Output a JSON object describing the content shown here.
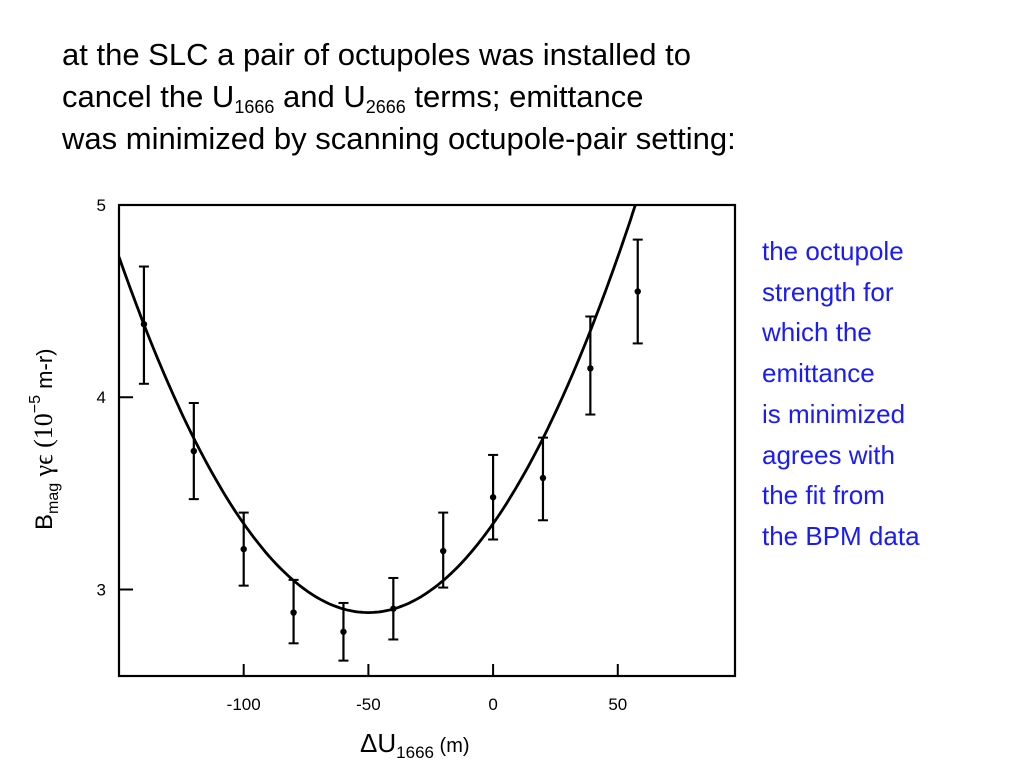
{
  "heading": {
    "line1": "at the SLC a pair of octupoles was installed to",
    "line2_a": "cancel the U",
    "line2_sub1": "1666",
    "line2_b": " and U",
    "line2_sub2": "2666",
    "line2_c": " terms; emittance",
    "line3": "was minimized by scanning octupole-pair setting:"
  },
  "side_note": {
    "lines": [
      "the octupole",
      "strength for",
      "which the",
      "emittance",
      "is minimized",
      "agrees with",
      "the fit from",
      "the BPM data"
    ]
  },
  "chart_data": {
    "type": "scatter",
    "xlabel_main": "ΔU",
    "xlabel_sub": "1666",
    "xlabel_unit": " (m)",
    "ylabel_b": "B",
    "ylabel_sub": "mag",
    "ylabel_sym": " γϵ (10",
    "ylabel_exp": "−5",
    "ylabel_unit": " m-r)",
    "xlim": [
      -150,
      97
    ],
    "ylim": [
      2.55,
      5.0
    ],
    "xticks": [
      -100,
      -50,
      0,
      50
    ],
    "xtick_labels": [
      "-100",
      "-50",
      "0",
      "50"
    ],
    "yticks": [
      3,
      4,
      5
    ],
    "ytick_labels": [
      "3",
      "4",
      "5"
    ],
    "points": [
      {
        "x": -140,
        "y": 4.38,
        "lo": 4.07,
        "hi": 4.68
      },
      {
        "x": -120,
        "y": 3.72,
        "lo": 3.47,
        "hi": 3.97
      },
      {
        "x": -100,
        "y": 3.21,
        "lo": 3.02,
        "hi": 3.4
      },
      {
        "x": -80,
        "y": 2.88,
        "lo": 2.72,
        "hi": 3.05
      },
      {
        "x": -60,
        "y": 2.78,
        "lo": 2.63,
        "hi": 2.93
      },
      {
        "x": -40,
        "y": 2.9,
        "lo": 2.74,
        "hi": 3.06
      },
      {
        "x": -20,
        "y": 3.2,
        "lo": 3.01,
        "hi": 3.4
      },
      {
        "x": 0,
        "y": 3.48,
        "lo": 3.26,
        "hi": 3.7
      },
      {
        "x": 20,
        "y": 3.58,
        "lo": 3.36,
        "hi": 3.79
      },
      {
        "x": 39,
        "y": 4.15,
        "lo": 3.91,
        "hi": 4.42
      },
      {
        "x": 58,
        "y": 4.55,
        "lo": 4.28,
        "hi": 4.82
      }
    ],
    "fit_curve": {
      "type": "parabola",
      "vertex_x": -50,
      "vertex_y": 2.88,
      "a": 0.000185
    },
    "grid": false
  }
}
